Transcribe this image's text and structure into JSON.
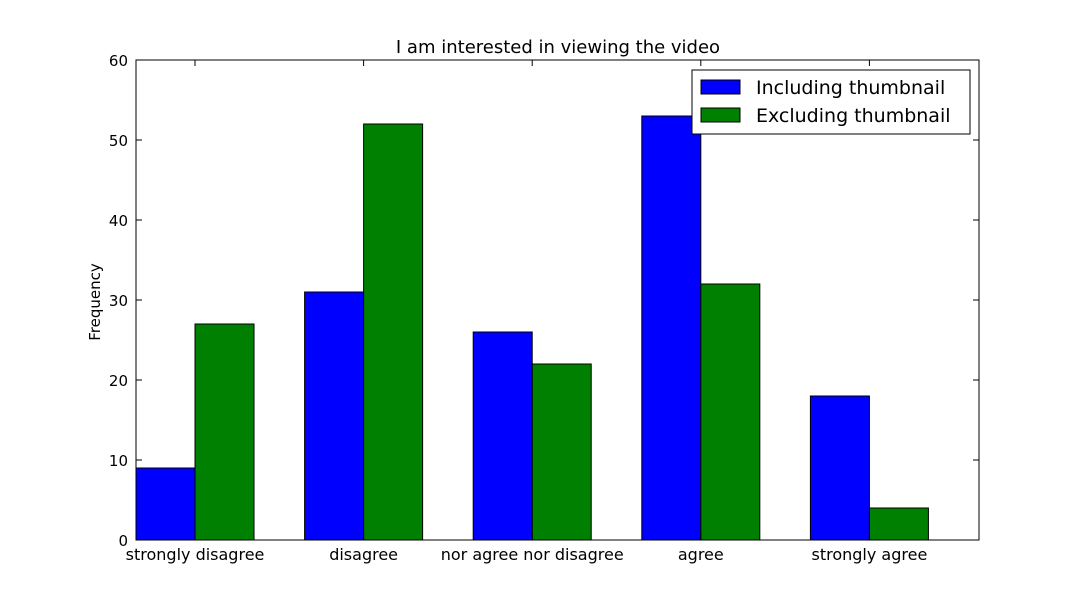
{
  "chart_data": {
    "type": "bar",
    "title": "I am interested in viewing the video",
    "xlabel": "",
    "ylabel": "Frequency",
    "ylim": [
      0,
      60
    ],
    "yticks": [
      0,
      10,
      20,
      30,
      40,
      50,
      60
    ],
    "categories": [
      "strongly disagree",
      "disagree",
      "nor agree nor disagree",
      "agree",
      "strongly agree"
    ],
    "series": [
      {
        "name": "Including thumbnail",
        "color": "#0000ff",
        "values": [
          9,
          31,
          26,
          53,
          18
        ]
      },
      {
        "name": "Excluding thumbnail",
        "color": "#008000",
        "values": [
          27,
          52,
          22,
          32,
          4
        ]
      }
    ],
    "grid": false,
    "legend_position": "top-right"
  }
}
